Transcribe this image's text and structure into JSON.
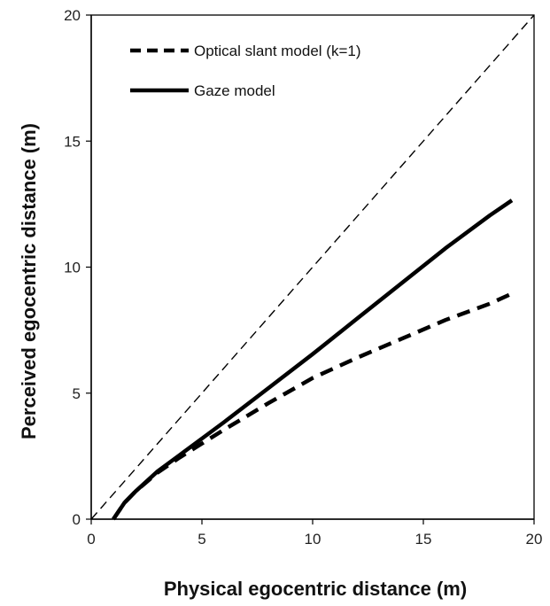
{
  "chart_data": {
    "type": "line",
    "title": "",
    "xlabel": "Physical egocentric distance (m)",
    "ylabel": "Perceived egocentric distance (m)",
    "xlim": [
      0,
      20
    ],
    "ylim": [
      0,
      20
    ],
    "xticks": [
      "0",
      "5",
      "10",
      "15",
      "20"
    ],
    "yticks": [
      "0",
      "5",
      "10",
      "15",
      "20"
    ],
    "grid": false,
    "legend": "top-left",
    "series": [
      {
        "name": "Optical slant model (k=1)",
        "style": "dashed-thick",
        "color": "#000000",
        "x": [
          1,
          1.5,
          2,
          3,
          4,
          5,
          6,
          8,
          10,
          12,
          14,
          16,
          18,
          19
        ],
        "y": [
          0,
          0.65,
          1.1,
          1.85,
          2.45,
          3.0,
          3.55,
          4.6,
          5.6,
          6.4,
          7.15,
          7.9,
          8.55,
          8.95
        ]
      },
      {
        "name": "Gaze model",
        "style": "solid-thick",
        "color": "#000000",
        "x": [
          1,
          1.5,
          2,
          3,
          4,
          5,
          6,
          8,
          10,
          12,
          14,
          16,
          18,
          19
        ],
        "y": [
          0,
          0.65,
          1.1,
          1.9,
          2.55,
          3.2,
          3.85,
          5.2,
          6.55,
          7.95,
          9.35,
          10.75,
          12.05,
          12.65
        ]
      },
      {
        "name": "",
        "style": "dashed-thin",
        "color": "#000000",
        "x": [
          0,
          20
        ],
        "y": [
          0,
          20
        ]
      }
    ]
  }
}
